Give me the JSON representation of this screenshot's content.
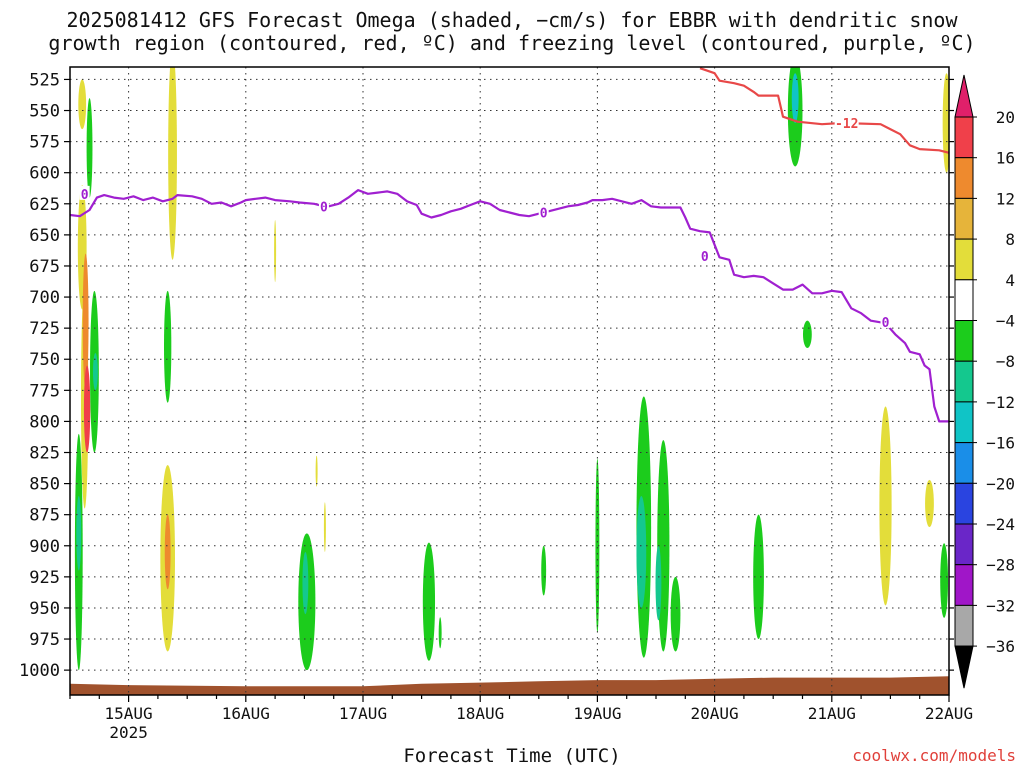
{
  "title": {
    "line1": "2025081412 GFS Forecast Omega (shaded, −cm/s) for EBBR with dendritic snow",
    "line2": "growth region (contoured, red, ºC) and freezing level (contoured, purple, ºC)"
  },
  "credit": "coolwx.com/models",
  "chart_data": {
    "type": "heatmap",
    "title": "2025081412 GFS Forecast Omega (shaded, −cm/s) for EBBR with dendritic snow growth region (contoured, red, ºC) and freezing level (contoured, purple, ºC)",
    "xlabel": "Forecast Time (UTC)",
    "ylabel": "",
    "x_domain_hours": [
      -12,
      168
    ],
    "x_ticks": [
      {
        "hour": 0,
        "label": "15AUG",
        "sublabel": "2025"
      },
      {
        "hour": 24,
        "label": "16AUG",
        "sublabel": ""
      },
      {
        "hour": 48,
        "label": "17AUG",
        "sublabel": ""
      },
      {
        "hour": 72,
        "label": "18AUG",
        "sublabel": ""
      },
      {
        "hour": 96,
        "label": "19AUG",
        "sublabel": ""
      },
      {
        "hour": 120,
        "label": "20AUG",
        "sublabel": ""
      },
      {
        "hour": 144,
        "label": "21AUG",
        "sublabel": ""
      },
      {
        "hour": 168,
        "label": "22AUG",
        "sublabel": ""
      }
    ],
    "y_axis": {
      "unit": "hPa",
      "range": [
        515,
        1020
      ],
      "reversed": true,
      "ticks": [
        525,
        550,
        575,
        600,
        625,
        650,
        675,
        700,
        725,
        750,
        775,
        800,
        825,
        850,
        875,
        900,
        925,
        950,
        975,
        1000
      ]
    },
    "grid": true,
    "colorbar": {
      "labels": [
        "20",
        "16",
        "12",
        "8",
        "4",
        "−4",
        "−8",
        "−12",
        "−16",
        "−20",
        "−24",
        "−28",
        "−32",
        "−36"
      ],
      "bands": [
        {
          "from": 20,
          "to": 16,
          "color": "#f0404a"
        },
        {
          "from": 16,
          "to": 12,
          "color": "#ee8a2e"
        },
        {
          "from": 12,
          "to": 8,
          "color": "#e6b43a"
        },
        {
          "from": 8,
          "to": 4,
          "color": "#e3dd3a"
        },
        {
          "from": 4,
          "to": -4,
          "color": "#ffffff"
        },
        {
          "from": -4,
          "to": -8,
          "color": "#1ccc1c"
        },
        {
          "from": -8,
          "to": -12,
          "color": "#14c88e"
        },
        {
          "from": -12,
          "to": -16,
          "color": "#10c4c6"
        },
        {
          "from": -16,
          "to": -20,
          "color": "#1a8ee8"
        },
        {
          "from": -20,
          "to": -24,
          "color": "#2a44e0"
        },
        {
          "from": -24,
          "to": -28,
          "color": "#6a26c8"
        },
        {
          "from": -28,
          "to": -32,
          "color": "#a016c8"
        },
        {
          "from": -32,
          "to": -36,
          "color": "#a8a8a8"
        }
      ],
      "top_arrow_color": "#e0206a",
      "bottom_arrow_color": "#000000"
    },
    "freezing_level": {
      "label": "0",
      "color": "#a020d0",
      "points": [
        [
          -12,
          634
        ],
        [
          -10,
          635
        ],
        [
          -8,
          630
        ],
        [
          -6.5,
          620
        ],
        [
          -5,
          618
        ],
        [
          -3,
          620
        ],
        [
          -1,
          621
        ],
        [
          1,
          619
        ],
        [
          3,
          622
        ],
        [
          5,
          620
        ],
        [
          7,
          623
        ],
        [
          9,
          621
        ],
        [
          10,
          618
        ],
        [
          13,
          619
        ],
        [
          15,
          621
        ],
        [
          17,
          625
        ],
        [
          19,
          624
        ],
        [
          21,
          627
        ],
        [
          23,
          624
        ],
        [
          24,
          622
        ],
        [
          26,
          621
        ],
        [
          28,
          620
        ],
        [
          30,
          622
        ],
        [
          33,
          623
        ],
        [
          35,
          624
        ],
        [
          38,
          625
        ],
        [
          40,
          627
        ],
        [
          41,
          627
        ],
        [
          43,
          625
        ],
        [
          45,
          620
        ],
        [
          47,
          614
        ],
        [
          49,
          617
        ],
        [
          51,
          616
        ],
        [
          53,
          615
        ],
        [
          55,
          617
        ],
        [
          57,
          623
        ],
        [
          59,
          626
        ],
        [
          60,
          633
        ],
        [
          62,
          636
        ],
        [
          64,
          634
        ],
        [
          66,
          631
        ],
        [
          68,
          629
        ],
        [
          70,
          626
        ],
        [
          72,
          623
        ],
        [
          74,
          625
        ],
        [
          76,
          630
        ],
        [
          78,
          632
        ],
        [
          80,
          634
        ],
        [
          82,
          635
        ],
        [
          84,
          633
        ],
        [
          86,
          631
        ],
        [
          88,
          629
        ],
        [
          90,
          627
        ],
        [
          92,
          626
        ],
        [
          94,
          624
        ],
        [
          95,
          622
        ],
        [
          97,
          622
        ],
        [
          99,
          621
        ],
        [
          101,
          623
        ],
        [
          103,
          625
        ],
        [
          105,
          622
        ],
        [
          107,
          627
        ],
        [
          109,
          628
        ],
        [
          111,
          628
        ],
        [
          113,
          628
        ],
        [
          114,
          636
        ],
        [
          115,
          645
        ],
        [
          117,
          647
        ],
        [
          119,
          648
        ],
        [
          120,
          658
        ],
        [
          121,
          668
        ],
        [
          123,
          670
        ],
        [
          124,
          682
        ],
        [
          126,
          684
        ],
        [
          128,
          683
        ],
        [
          130,
          684
        ],
        [
          132,
          689
        ],
        [
          134,
          694
        ],
        [
          136,
          694
        ],
        [
          138,
          690
        ],
        [
          140,
          697
        ],
        [
          142,
          697
        ],
        [
          144,
          695
        ],
        [
          146,
          696
        ],
        [
          148,
          709
        ],
        [
          150,
          713
        ],
        [
          152,
          719
        ],
        [
          155,
          721
        ],
        [
          157,
          730
        ],
        [
          159,
          737
        ],
        [
          160,
          744
        ],
        [
          162,
          746
        ],
        [
          163,
          755
        ],
        [
          164,
          758
        ],
        [
          165,
          788
        ],
        [
          166,
          800
        ],
        [
          168,
          800
        ]
      ],
      "labels_at": [
        [
          -9,
          617
        ],
        [
          40,
          627
        ],
        [
          85,
          632
        ],
        [
          118,
          667
        ],
        [
          155,
          720
        ]
      ]
    },
    "dgz_contour": {
      "label": "-12",
      "color": "#e84848",
      "points": [
        [
          117,
          516
        ],
        [
          120,
          520
        ],
        [
          121,
          526
        ],
        [
          124,
          528
        ],
        [
          126,
          530
        ],
        [
          128,
          535
        ],
        [
          129,
          538
        ],
        [
          133,
          538
        ],
        [
          134,
          555
        ],
        [
          137,
          559
        ],
        [
          142,
          561
        ],
        [
          146,
          560
        ],
        [
          154,
          561
        ],
        [
          158,
          569
        ],
        [
          160,
          578
        ],
        [
          162,
          581
        ],
        [
          166,
          582
        ],
        [
          168,
          584
        ]
      ],
      "labels_at": [
        [
          145,
          560
        ]
      ]
    },
    "omega_cells": [
      {
        "hour": -9.5,
        "p": 545,
        "w": 1.6,
        "h": 40,
        "color": "#e3dd3a",
        "value": 6
      },
      {
        "hour": -9.5,
        "p": 660,
        "w": 1.8,
        "h": 100,
        "color": "#e3dd3a",
        "value": 6
      },
      {
        "hour": -9,
        "p": 780,
        "w": 1.5,
        "h": 180,
        "color": "#e3dd3a",
        "value": 6
      },
      {
        "hour": -8.8,
        "p": 720,
        "w": 1.2,
        "h": 110,
        "color": "#ee8a2e",
        "value": 14
      },
      {
        "hour": -8.5,
        "p": 790,
        "w": 1.3,
        "h": 70,
        "color": "#f0404a",
        "value": 18
      },
      {
        "hour": -8,
        "p": 580,
        "w": 1.2,
        "h": 80,
        "color": "#1ccc1c",
        "value": -6
      },
      {
        "hour": -10.2,
        "p": 905,
        "w": 1.6,
        "h": 190,
        "color": "#1ccc1c",
        "value": -6
      },
      {
        "hour": -10.2,
        "p": 890,
        "w": 1,
        "h": 60,
        "color": "#14c88e",
        "value": -10
      },
      {
        "hour": -7,
        "p": 760,
        "w": 1.8,
        "h": 130,
        "color": "#1ccc1c",
        "value": -6
      },
      {
        "hour": -6.8,
        "p": 760,
        "w": 1,
        "h": 30,
        "color": "#14c88e",
        "value": -10
      },
      {
        "hour": 9,
        "p": 585,
        "w": 1.8,
        "h": 170,
        "color": "#e3dd3a",
        "value": 6
      },
      {
        "hour": 8,
        "p": 740,
        "w": 1.5,
        "h": 90,
        "color": "#1ccc1c",
        "value": -6
      },
      {
        "hour": 8,
        "p": 910,
        "w": 3,
        "h": 150,
        "color": "#e3dd3a",
        "value": 6
      },
      {
        "hour": 8,
        "p": 905,
        "w": 1.2,
        "h": 60,
        "color": "#ee8a2e",
        "value": 14
      },
      {
        "hour": 30,
        "p": 663,
        "w": 0.4,
        "h": 50,
        "color": "#e3dd3a",
        "value": 5
      },
      {
        "hour": 38.5,
        "p": 840,
        "w": 0.4,
        "h": 25,
        "color": "#e3dd3a",
        "value": 5
      },
      {
        "hour": 40.2,
        "p": 885,
        "w": 0.4,
        "h": 40,
        "color": "#e3dd3a",
        "value": 5
      },
      {
        "hour": 36.5,
        "p": 945,
        "w": 3.5,
        "h": 110,
        "color": "#1ccc1c",
        "value": -6
      },
      {
        "hour": 36.2,
        "p": 930,
        "w": 1.2,
        "h": 50,
        "color": "#14c88e",
        "value": -10
      },
      {
        "hour": 61.5,
        "p": 945,
        "w": 2.5,
        "h": 95,
        "color": "#1ccc1c",
        "value": -6
      },
      {
        "hour": 63.8,
        "p": 970,
        "w": 0.6,
        "h": 25,
        "color": "#1ccc1c",
        "value": -6
      },
      {
        "hour": 85,
        "p": 920,
        "w": 1,
        "h": 40,
        "color": "#1ccc1c",
        "value": -6
      },
      {
        "hour": 96,
        "p": 900,
        "w": 0.8,
        "h": 140,
        "color": "#1ccc1c",
        "value": -6
      },
      {
        "hour": 105.5,
        "p": 885,
        "w": 3,
        "h": 210,
        "color": "#1ccc1c",
        "value": -6
      },
      {
        "hour": 105,
        "p": 905,
        "w": 2,
        "h": 90,
        "color": "#14c88e",
        "value": -10
      },
      {
        "hour": 109.5,
        "p": 900,
        "w": 2.5,
        "h": 170,
        "color": "#1ccc1c",
        "value": -6
      },
      {
        "hour": 108.5,
        "p": 930,
        "w": 1.2,
        "h": 60,
        "color": "#14c88e",
        "value": -10
      },
      {
        "hour": 112,
        "p": 955,
        "w": 2,
        "h": 60,
        "color": "#1ccc1c",
        "value": -6
      },
      {
        "hour": 129,
        "p": 925,
        "w": 2.2,
        "h": 100,
        "color": "#1ccc1c",
        "value": -6
      },
      {
        "hour": 136.5,
        "p": 550,
        "w": 3,
        "h": 90,
        "color": "#1ccc1c",
        "value": -6
      },
      {
        "hour": 136.5,
        "p": 540,
        "w": 1.4,
        "h": 40,
        "color": "#10c4c6",
        "value": -14
      },
      {
        "hour": 139,
        "p": 730,
        "w": 1.8,
        "h": 22,
        "color": "#1ccc1c",
        "value": -6
      },
      {
        "hour": 155,
        "p": 868,
        "w": 2.5,
        "h": 160,
        "color": "#e3dd3a",
        "value": 6
      },
      {
        "hour": 164,
        "p": 866,
        "w": 1.8,
        "h": 38,
        "color": "#e3dd3a",
        "value": 6
      },
      {
        "hour": 167,
        "p": 928,
        "w": 1.6,
        "h": 60,
        "color": "#1ccc1c",
        "value": -6
      },
      {
        "hour": 167.5,
        "p": 560,
        "w": 1.6,
        "h": 80,
        "color": "#e3dd3a",
        "value": 6
      }
    ],
    "terrain": {
      "color": "#a0522d",
      "points": [
        [
          -12,
          1011
        ],
        [
          0,
          1012
        ],
        [
          24,
          1013
        ],
        [
          48,
          1013
        ],
        [
          60,
          1011
        ],
        [
          72,
          1010
        ],
        [
          84,
          1009
        ],
        [
          96,
          1008
        ],
        [
          108,
          1008
        ],
        [
          120,
          1007
        ],
        [
          132,
          1006
        ],
        [
          144,
          1006
        ],
        [
          156,
          1006
        ],
        [
          168,
          1005
        ]
      ]
    }
  }
}
